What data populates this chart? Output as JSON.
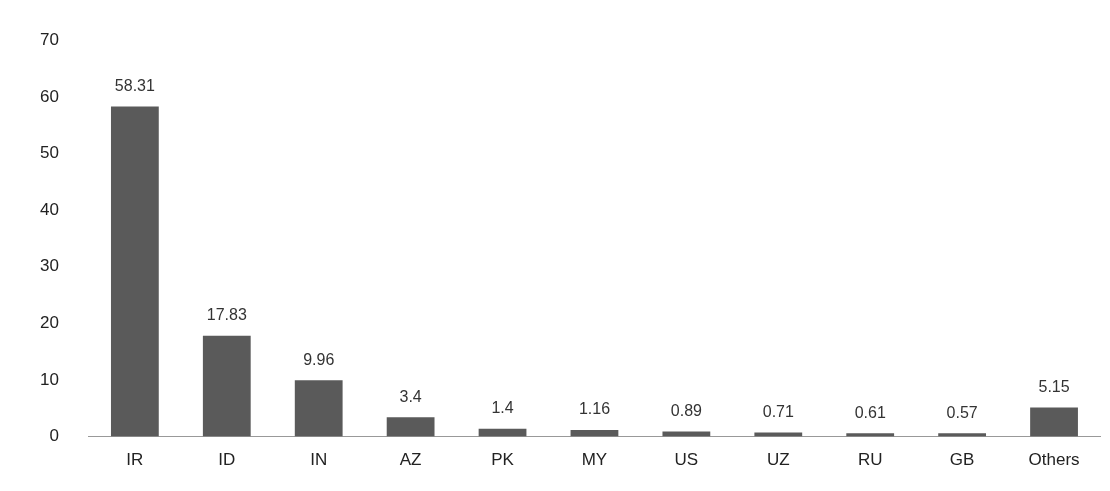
{
  "chart_data": {
    "type": "bar",
    "categories": [
      "IR",
      "ID",
      "IN",
      "AZ",
      "PK",
      "MY",
      "US",
      "UZ",
      "RU",
      "GB",
      "Others"
    ],
    "values": [
      58.31,
      17.83,
      9.96,
      3.4,
      1.4,
      1.16,
      0.89,
      0.71,
      0.61,
      0.57,
      5.15
    ],
    "color": "#5a5a5a",
    "ylim": [
      0,
      70
    ],
    "yticks": [
      0,
      10,
      20,
      30,
      40,
      50,
      60,
      70
    ],
    "grid": false,
    "legend": false,
    "data_labels": true
  }
}
